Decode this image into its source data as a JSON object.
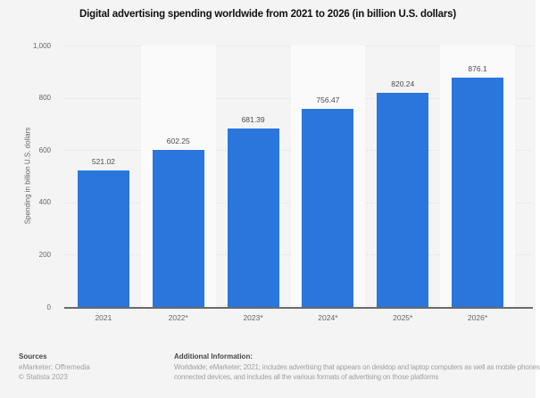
{
  "title": "Digital advertising spending worldwide from 2021 to 2026 (in billion U.S. dollars)",
  "chart_data": {
    "type": "bar",
    "title": "Digital advertising spending worldwide from 2021 to 2026 (in billion U.S. dollars)",
    "categories": [
      "2021",
      "2022*",
      "2023*",
      "2024*",
      "2025*",
      "2026*"
    ],
    "values": [
      521.02,
      602.25,
      681.39,
      756.47,
      820.24,
      876.1
    ],
    "value_labels": [
      "521.02",
      "602.25",
      "681.39",
      "756.47",
      "820.24",
      "876.1"
    ],
    "xlabel": "",
    "ylabel": "Spending in billion U.S. dollars",
    "ylim": [
      0,
      1000
    ],
    "yticks": [
      0,
      200,
      400,
      600,
      800,
      1000
    ],
    "ytick_labels": [
      "0",
      "200",
      "400",
      "600",
      "800",
      "1,000"
    ],
    "grid": true,
    "legend": "none"
  },
  "colors": {
    "bar": "#2a76dd",
    "background": "#f4f4f5",
    "column_stripe": "#fafafa",
    "gridline": "#d9d9d9",
    "axis_line": "#6b6b6b",
    "title_text": "#111111",
    "axis_text": "#666666",
    "value_label_text": "#4d4d4d",
    "footer_heading_text": "#474747",
    "footer_body_text": "#a0a0a0"
  },
  "footer": {
    "sources_heading": "Sources",
    "sources_line1": "eMarketer; Offremedia",
    "sources_line2": "© Statista 2023",
    "additional_heading": "Additional Information:",
    "additional_line1": "Worldwide; eMarketer; 2021; includes advertising that appears on desktop and laptop computers as well as mobile phones",
    "additional_line2": "connected devices, and includes all the various formats of advertising on those platforms"
  }
}
